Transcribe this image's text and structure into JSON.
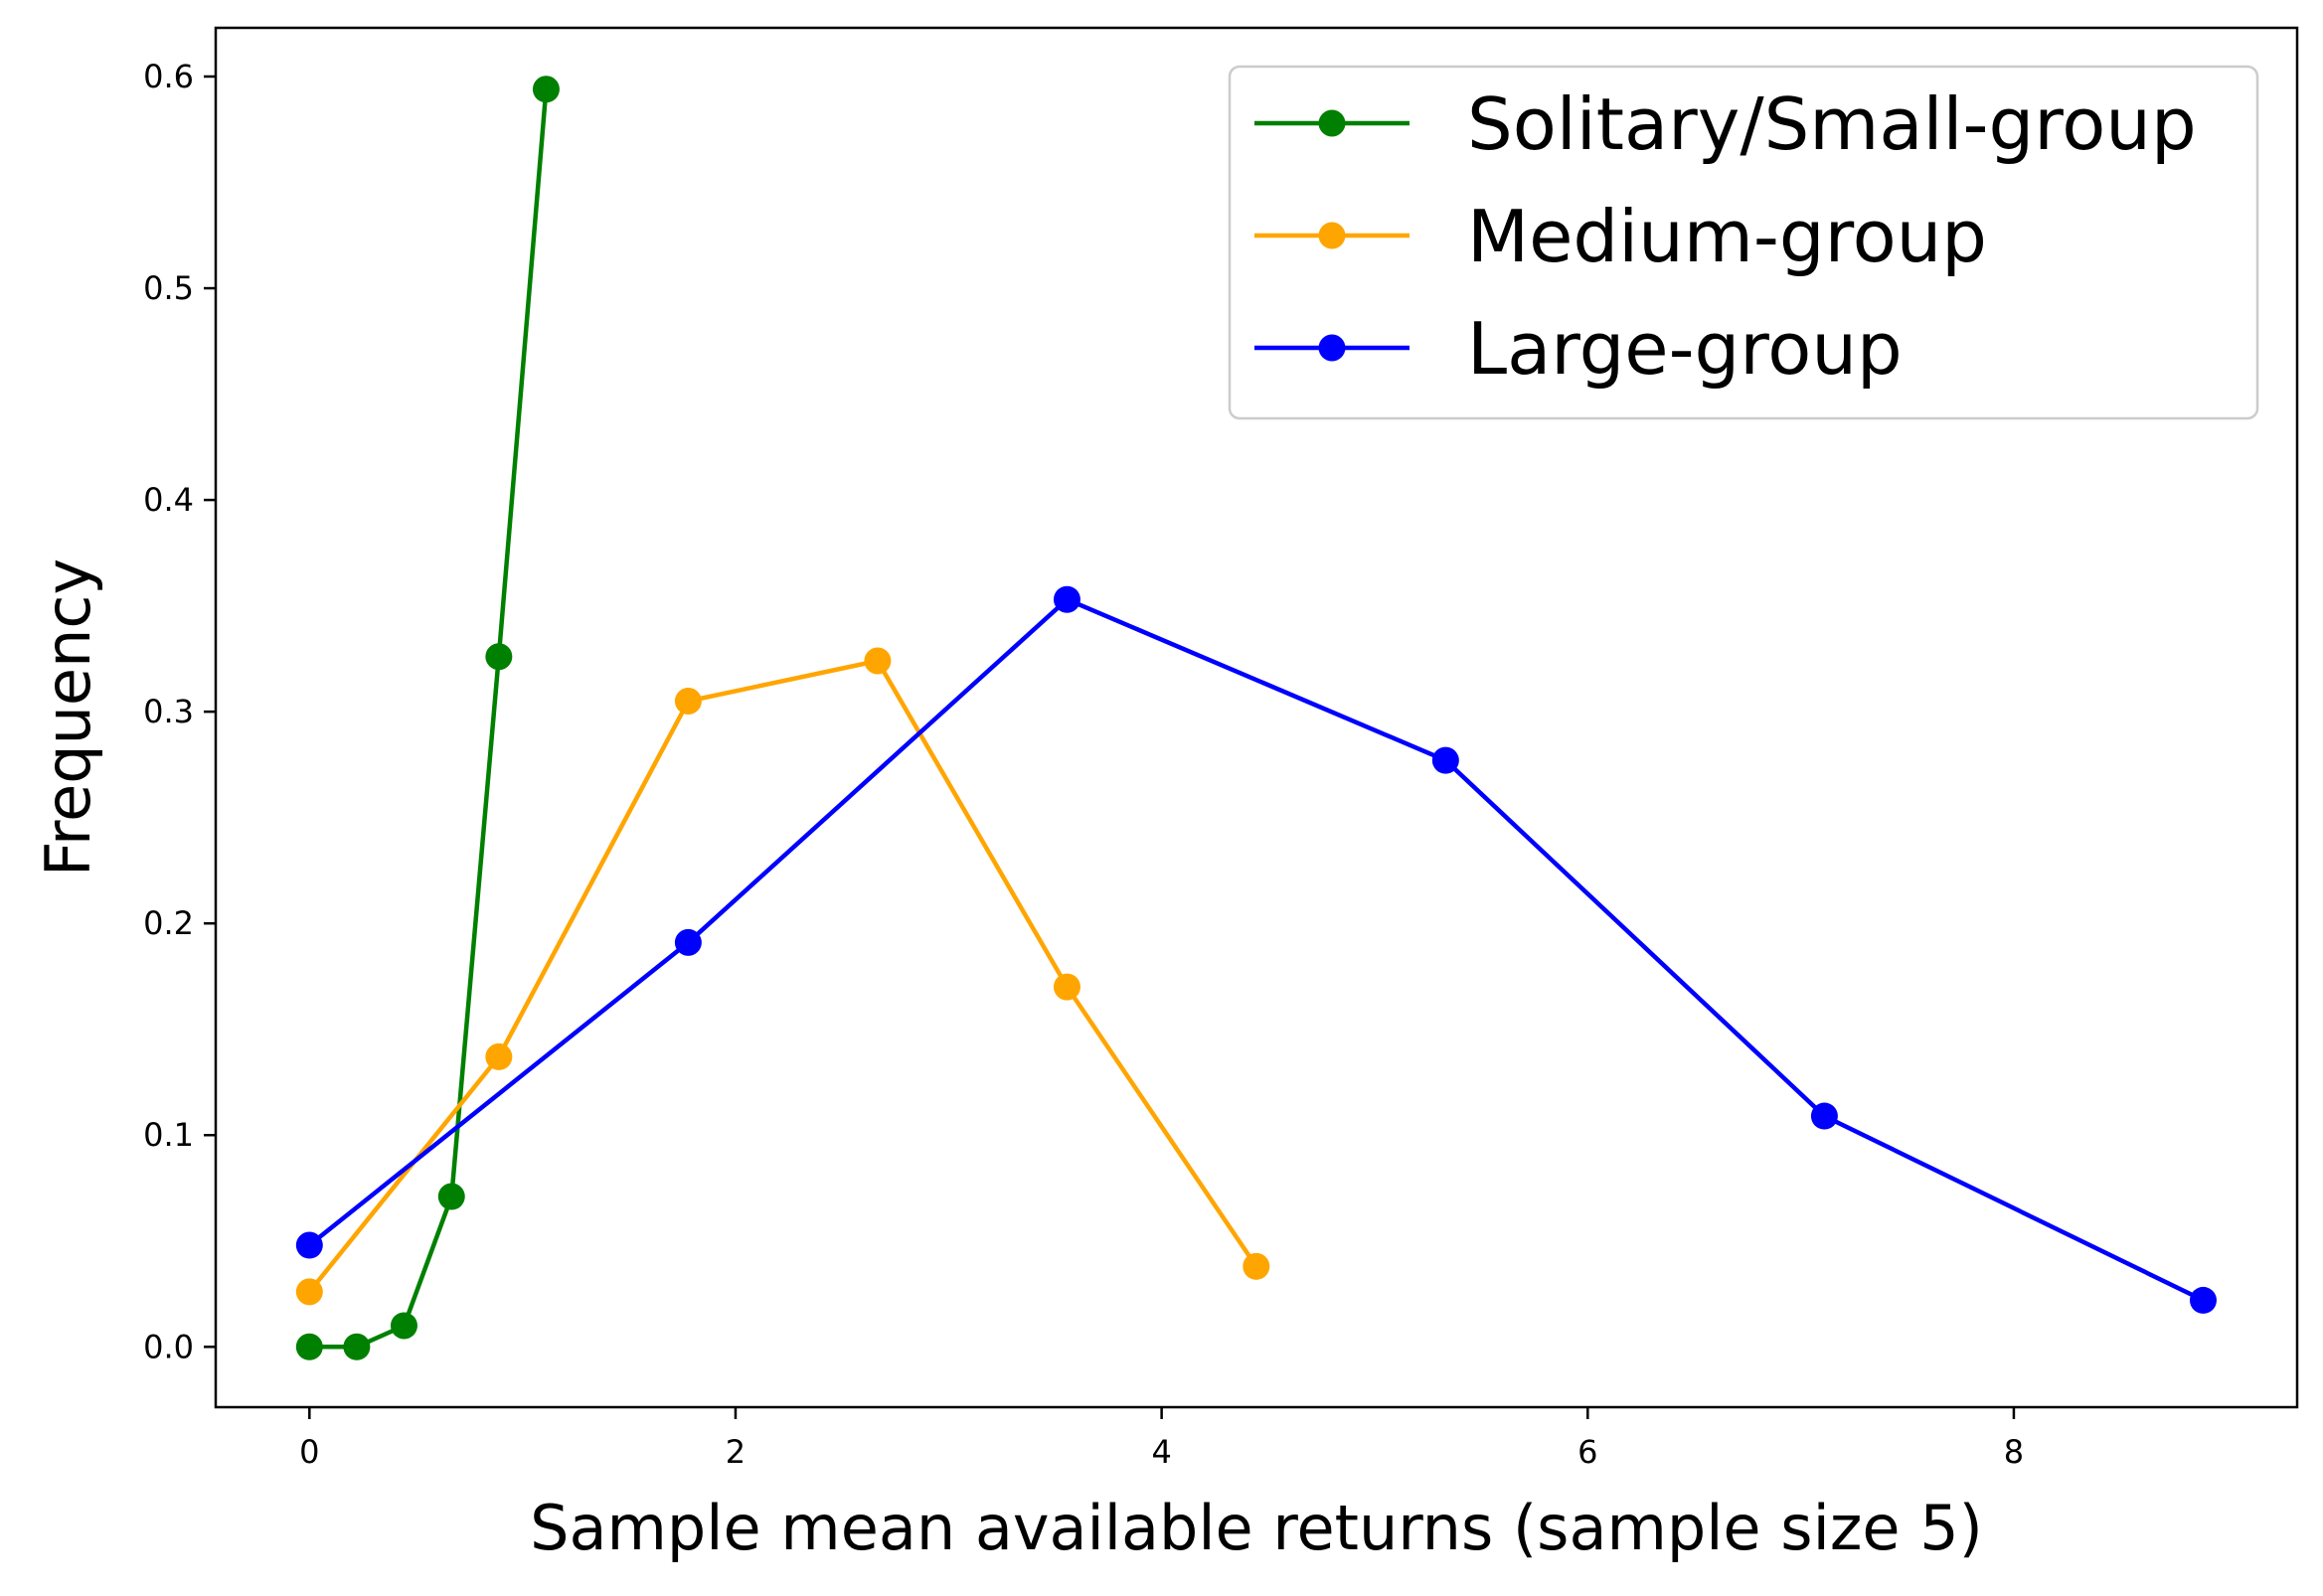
{
  "chart_data": {
    "type": "line",
    "title": "",
    "xlabel": "Sample mean available returns (sample size 5)",
    "ylabel": "Frequency",
    "xlim": [
      -0.44,
      9.33
    ],
    "ylim": [
      -0.0285,
      0.623
    ],
    "xticks": [
      0,
      2,
      4,
      6,
      8
    ],
    "yticks": [
      0.0,
      0.1,
      0.2,
      0.3,
      0.4,
      0.5,
      0.6
    ],
    "xtick_labels": [
      "0",
      "2",
      "4",
      "6",
      "8"
    ],
    "ytick_labels": [
      "0.0",
      "0.1",
      "0.2",
      "0.3",
      "0.4",
      "0.5",
      "0.6"
    ],
    "grid": false,
    "legend_position": "top-right",
    "series": [
      {
        "name": "Solitary/Small-group",
        "color": "#008000",
        "x": [
          0.0,
          0.222,
          0.444,
          0.667,
          0.889,
          1.111
        ],
        "y": [
          0.0,
          0.0,
          0.01,
          0.071,
          0.326,
          0.594
        ]
      },
      {
        "name": "Medium-group",
        "color": "#ffa500",
        "x": [
          0.0,
          0.889,
          1.778,
          2.667,
          3.556,
          4.444
        ],
        "y": [
          0.026,
          0.137,
          0.305,
          0.324,
          0.17,
          0.038
        ]
      },
      {
        "name": "Large-group",
        "color": "#0000ff",
        "x": [
          0.0,
          1.778,
          3.556,
          5.333,
          7.111,
          8.889
        ],
        "y": [
          0.048,
          0.191,
          0.353,
          0.277,
          0.109,
          0.022
        ]
      }
    ]
  }
}
